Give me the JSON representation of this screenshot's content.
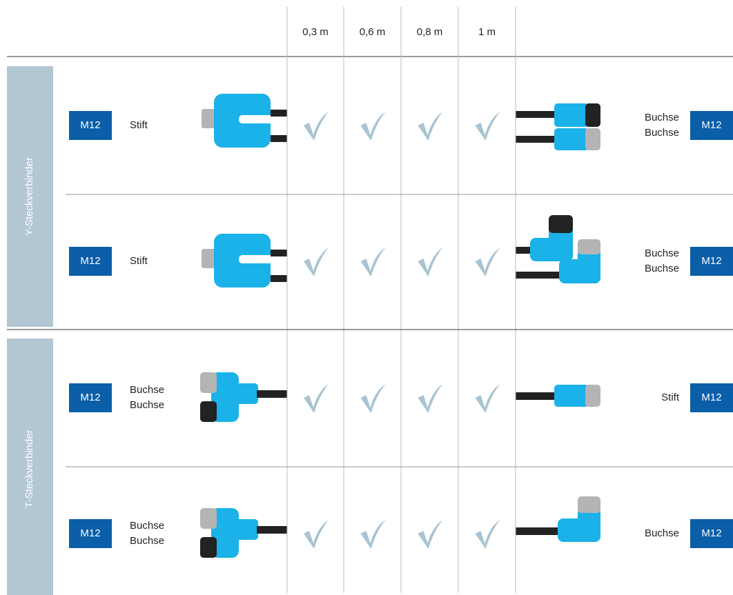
{
  "header": {
    "columns": [
      "0,3 m",
      "0,6 m",
      "0,8 m",
      "1 m"
    ]
  },
  "groups": [
    {
      "label": "Y-Steckverbinder",
      "rows": [
        {
          "left_badge": "M12",
          "left_label": [
            "Stift"
          ],
          "right_label": [
            "Buchse",
            "Buchse"
          ],
          "right_badge": "M12"
        },
        {
          "left_badge": "M12",
          "left_label": [
            "Stift"
          ],
          "right_label": [
            "Buchse",
            "Buchse"
          ],
          "right_badge": "M12"
        }
      ]
    },
    {
      "label": "T-Steckverbinder",
      "rows": [
        {
          "left_badge": "M12",
          "left_label": [
            "Buchse",
            "Buchse"
          ],
          "right_label": [
            "Stift"
          ],
          "right_badge": "M12"
        },
        {
          "left_badge": "M12",
          "left_label": [
            "Buchse",
            "Buchse"
          ],
          "right_label": [
            "Buchse"
          ],
          "right_badge": "M12"
        }
      ]
    }
  ]
}
